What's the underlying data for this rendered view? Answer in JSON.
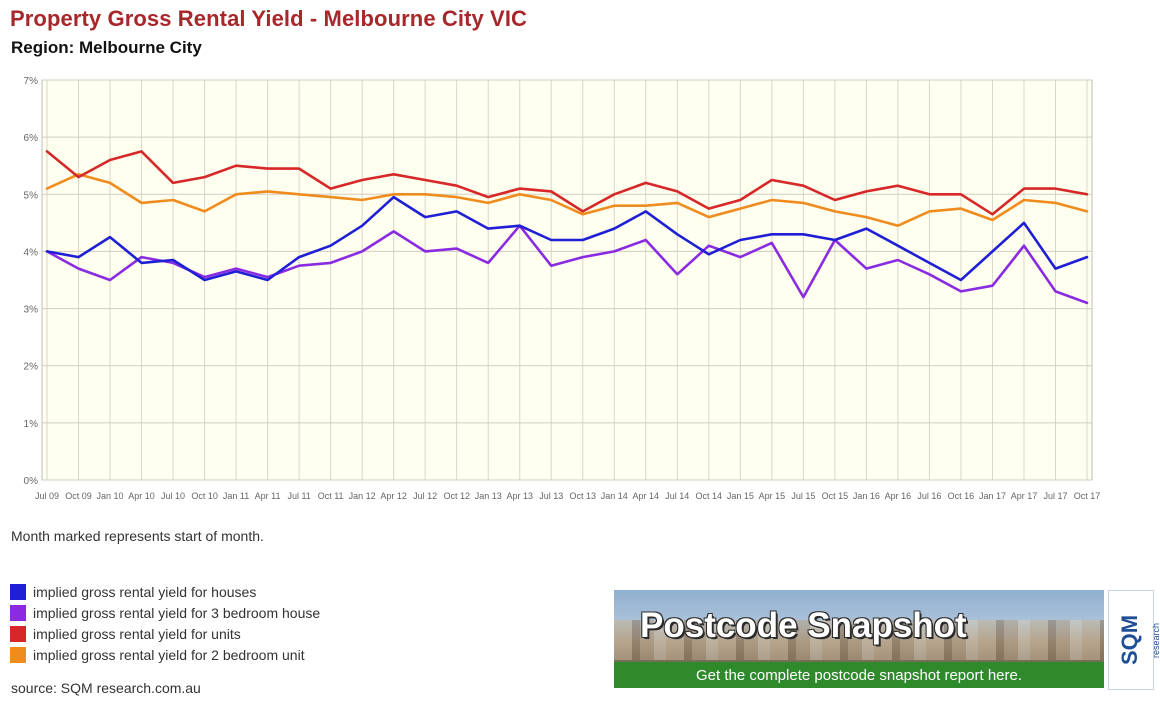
{
  "page": {
    "title": "Property Gross Rental Yield - Melbourne City VIC",
    "subtitle": "Region: Melbourne City",
    "note": "Month marked represents start of month.",
    "source": "source: SQM research.com.au"
  },
  "banner": {
    "title": "Postcode Snapshot",
    "subtitle": "Get the complete postcode snapshot report here.",
    "logo_text": "SQM",
    "logo_small": "research"
  },
  "chart_data": {
    "type": "line",
    "title": "Property Gross Rental Yield - Melbourne City VIC",
    "subtitle": "Region: Melbourne City",
    "xlabel": "",
    "ylabel": "",
    "ylim": [
      0,
      7
    ],
    "yticks": [
      "0%",
      "1%",
      "2%",
      "3%",
      "4%",
      "5%",
      "6%",
      "7%"
    ],
    "grid": true,
    "legend_position": "bottom-left",
    "xticks": [
      "Jul 09",
      "Oct 09",
      "Jan 10",
      "Apr 10",
      "Jul 10",
      "Oct 10",
      "Jan 11",
      "Apr 11",
      "Jul 11",
      "Oct 11",
      "Jan 12",
      "Apr 12",
      "Jul 12",
      "Oct 12",
      "Jan 13",
      "Apr 13",
      "Jul 13",
      "Oct 13",
      "Jan 14",
      "Apr 14",
      "Jul 14",
      "Oct 14",
      "Jan 15",
      "Apr 15",
      "Jul 15",
      "Oct 15",
      "Jan 16",
      "Apr 16",
      "Jul 16",
      "Oct 16",
      "Jan 17",
      "Apr 17",
      "Jul 17",
      "Oct 17"
    ],
    "x_dates": [
      "2009-07",
      "2009-10",
      "2010-01",
      "2010-04",
      "2010-07",
      "2010-10",
      "2011-01",
      "2011-04",
      "2011-07",
      "2011-10",
      "2012-01",
      "2012-04",
      "2012-07",
      "2012-10",
      "2013-01",
      "2013-04",
      "2013-07",
      "2013-10",
      "2014-01",
      "2014-04",
      "2014-07",
      "2014-10",
      "2015-01",
      "2015-04",
      "2015-07",
      "2015-10",
      "2016-01",
      "2016-04",
      "2016-07",
      "2016-10",
      "2017-01",
      "2017-04",
      "2017-07",
      "2017-10"
    ],
    "series": [
      {
        "name": "implied gross rental yield for houses",
        "color": "#1f1fd6",
        "values": [
          4.0,
          3.9,
          4.25,
          3.8,
          3.85,
          3.5,
          3.65,
          3.5,
          3.9,
          4.1,
          4.45,
          4.95,
          4.6,
          4.7,
          4.4,
          4.45,
          4.2,
          4.2,
          4.4,
          4.7,
          4.3,
          3.95,
          4.2,
          4.3,
          4.3,
          4.2,
          4.4,
          4.1,
          3.8,
          3.5,
          4.0,
          4.5,
          3.7,
          3.9
        ]
      },
      {
        "name": "implied gross rental yield for 3 bedroom house",
        "color": "#8a2be2",
        "values": [
          4.0,
          3.7,
          3.5,
          3.9,
          3.8,
          3.55,
          3.7,
          3.55,
          3.75,
          3.8,
          4.0,
          4.35,
          4.0,
          4.05,
          3.8,
          4.45,
          3.75,
          3.9,
          4.0,
          4.2,
          3.6,
          4.1,
          3.9,
          4.15,
          3.2,
          4.2,
          3.7,
          3.85,
          3.6,
          3.3,
          3.4,
          4.1,
          3.3,
          3.1
        ]
      },
      {
        "name": "implied gross rental yield for units",
        "color": "#d62828",
        "values": [
          5.75,
          5.3,
          5.6,
          5.75,
          5.2,
          5.3,
          5.5,
          5.45,
          5.45,
          5.1,
          5.25,
          5.35,
          5.25,
          5.15,
          4.95,
          5.1,
          5.05,
          4.7,
          5.0,
          5.2,
          5.05,
          4.75,
          4.9,
          5.25,
          5.15,
          4.9,
          5.05,
          5.15,
          5.0,
          5.0,
          4.65,
          5.1,
          5.1,
          5.0
        ]
      },
      {
        "name": "implied gross rental yield for 2 bedroom unit",
        "color": "#f08c1e",
        "values": [
          5.1,
          5.35,
          5.2,
          4.85,
          4.9,
          4.7,
          5.0,
          5.05,
          5.0,
          4.95,
          4.9,
          5.0,
          5.0,
          4.95,
          4.85,
          5.0,
          4.9,
          4.65,
          4.8,
          4.8,
          4.85,
          4.6,
          4.75,
          4.9,
          4.85,
          4.7,
          4.6,
          4.45,
          4.7,
          4.75,
          4.55,
          4.9,
          4.85,
          4.7
        ]
      }
    ]
  }
}
